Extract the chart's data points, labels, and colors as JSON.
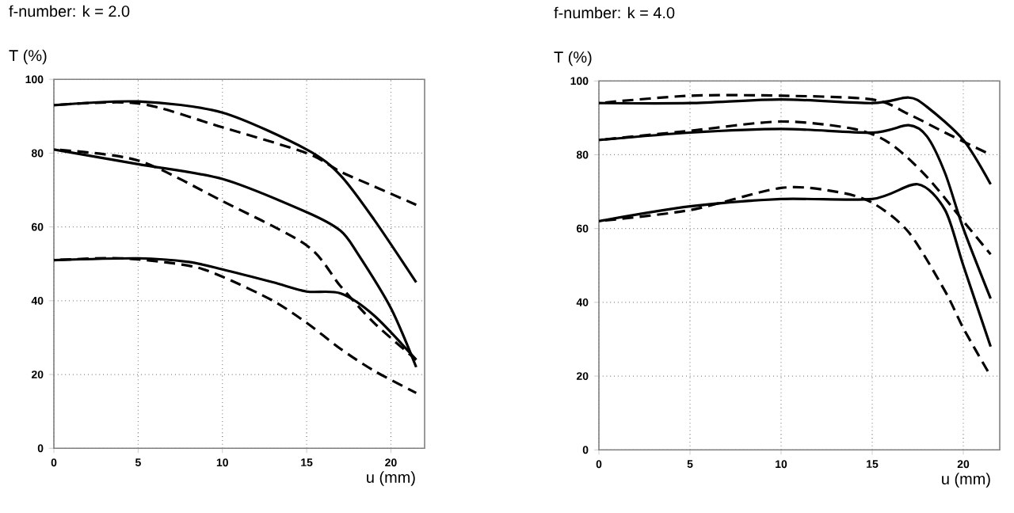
{
  "chart_data": [
    {
      "type": "line",
      "title": "f-number: k = 2.0",
      "ylabel": "T (%)",
      "xlabel": "u (mm)",
      "xlim": [
        0,
        22
      ],
      "ylim": [
        0,
        100
      ],
      "xticks": [
        0,
        5,
        10,
        15,
        20
      ],
      "yticks": [
        0,
        20,
        40,
        60,
        80,
        100
      ],
      "grid": true,
      "series": [
        {
          "color": "#000000",
          "line_style": "solid",
          "x": [
            0,
            5,
            10,
            15,
            17,
            19,
            21.5
          ],
          "values": [
            93,
            94,
            91,
            81,
            74,
            62,
            45
          ]
        },
        {
          "color": "#000000",
          "line_style": "dashed",
          "x": [
            0,
            5,
            10,
            15,
            17,
            19,
            21.5
          ],
          "values": [
            93,
            93.5,
            87,
            80,
            75,
            71,
            66
          ]
        },
        {
          "color": "#000000",
          "line_style": "solid",
          "x": [
            0,
            5,
            10,
            15,
            17,
            18,
            20,
            21.5
          ],
          "values": [
            81,
            77,
            73,
            64,
            59,
            53,
            38,
            22
          ]
        },
        {
          "color": "#000000",
          "line_style": "dashed",
          "x": [
            0,
            5,
            10,
            15,
            17,
            19,
            21.5
          ],
          "values": [
            81,
            78,
            67,
            55,
            44,
            34,
            24
          ]
        },
        {
          "color": "#000000",
          "line_style": "solid",
          "x": [
            0,
            5,
            8,
            10,
            13,
            15,
            17,
            19,
            21.5
          ],
          "values": [
            51,
            51.5,
            50.5,
            48.5,
            45,
            42.5,
            42,
            36,
            24
          ]
        },
        {
          "color": "#000000",
          "line_style": "dashed",
          "x": [
            0,
            4,
            8,
            10,
            13,
            15,
            17,
            19,
            21.5
          ],
          "values": [
            51,
            51.5,
            49.5,
            46.5,
            40,
            34,
            27,
            21,
            15
          ]
        }
      ]
    },
    {
      "type": "line",
      "title": "f-number: k = 4.0",
      "ylabel": "T (%)",
      "xlabel": "u (mm)",
      "xlim": [
        0,
        22
      ],
      "ylim": [
        0,
        100
      ],
      "xticks": [
        0,
        5,
        10,
        15,
        20
      ],
      "yticks": [
        0,
        20,
        40,
        60,
        80,
        100
      ],
      "grid": true,
      "series": [
        {
          "color": "#000000",
          "line_style": "solid",
          "x": [
            0,
            5,
            10,
            15,
            17,
            18,
            20,
            21.5
          ],
          "values": [
            94,
            94,
            95,
            94,
            95.5,
            93,
            84,
            72
          ]
        },
        {
          "color": "#000000",
          "line_style": "dashed",
          "x": [
            0,
            5,
            10,
            15,
            17,
            19,
            21.5
          ],
          "values": [
            94,
            96,
            96,
            95,
            91,
            86,
            80
          ]
        },
        {
          "color": "#000000",
          "line_style": "solid",
          "x": [
            0,
            5,
            10,
            15,
            17,
            18,
            19,
            20,
            21.5
          ],
          "values": [
            84,
            86,
            87,
            86,
            88,
            85,
            75,
            60,
            41
          ]
        },
        {
          "color": "#000000",
          "line_style": "dashed",
          "x": [
            0,
            5,
            10,
            14,
            16,
            18,
            20,
            21.5
          ],
          "values": [
            84,
            86.5,
            89,
            87,
            83,
            74,
            62,
            53
          ]
        },
        {
          "color": "#000000",
          "line_style": "solid",
          "x": [
            0,
            5,
            10,
            15,
            17.5,
            19,
            20,
            21.5
          ],
          "values": [
            62,
            66,
            68,
            68,
            72,
            65,
            50,
            28
          ]
        },
        {
          "color": "#000000",
          "line_style": "dashed",
          "x": [
            0,
            5,
            10,
            13,
            15,
            17,
            19,
            20,
            21.5
          ],
          "values": [
            62,
            65,
            71,
            70,
            67,
            59,
            43,
            33,
            20
          ]
        }
      ]
    }
  ]
}
